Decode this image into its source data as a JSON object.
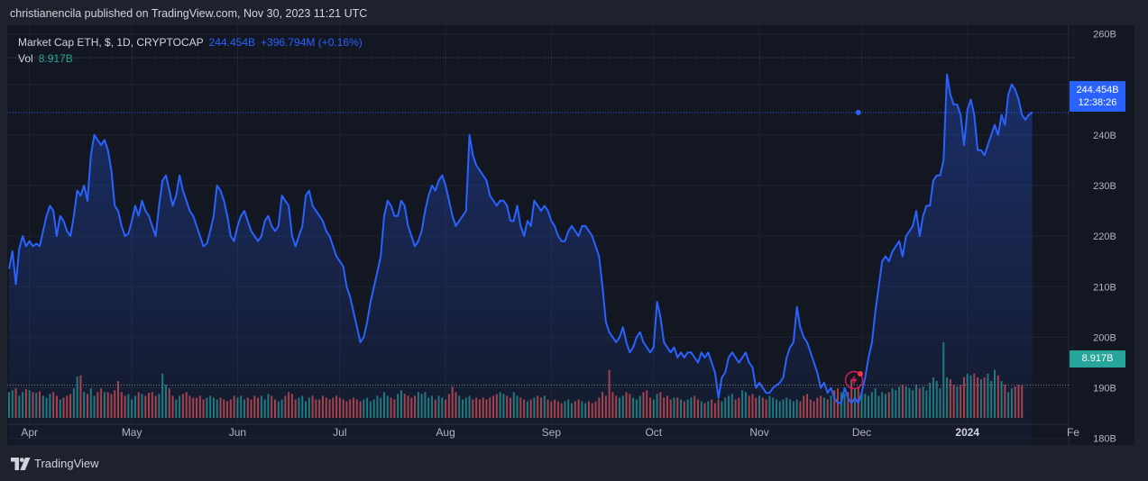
{
  "header": {
    "published_text": "christianencila published on TradingView.com, Nov 30, 2023 11:21 UTC"
  },
  "legend": {
    "title": "Market Cap ETH, $, 1D, CRYPTOCAP",
    "last_value": "244.454B",
    "change": "+396.794M (+0.16%)",
    "vol_label": "Vol",
    "vol_value": "8.917B"
  },
  "price_tag": {
    "value": "244.454B",
    "countdown": "12:38:26"
  },
  "vol_tag": {
    "value": "8.917B"
  },
  "footer": {
    "brand": "TradingView",
    "logo_icon": "tradingview-logo-icon"
  },
  "colors": {
    "line": "#2962ff",
    "vol_up": "#26a69a",
    "vol_down": "#ef5350",
    "background": "#131722",
    "page_background": "#1e222d"
  },
  "chart_data": {
    "type": "area",
    "x_ticks": [
      {
        "label": "Apr",
        "date": "2023-04-01"
      },
      {
        "label": "May",
        "date": "2023-05-01"
      },
      {
        "label": "Jun",
        "date": "2023-06-01"
      },
      {
        "label": "Jul",
        "date": "2023-07-01"
      },
      {
        "label": "Aug",
        "date": "2023-08-01"
      },
      {
        "label": "Sep",
        "date": "2023-09-01"
      },
      {
        "label": "Oct",
        "date": "2023-10-01"
      },
      {
        "label": "Nov",
        "date": "2023-11-01"
      },
      {
        "label": "Dec",
        "date": "2023-12-01"
      },
      {
        "label": "2024",
        "date": "2024-01-01"
      },
      {
        "label": "Fe",
        "date": "2024-02-01"
      }
    ],
    "x_range": [
      "2023-03-26",
      "2024-02-01"
    ],
    "y_ticks": [
      "260B",
      "250B",
      "240B",
      "230B",
      "220B",
      "210B",
      "200B",
      "190B",
      "180B"
    ],
    "y_tick_values": [
      260,
      250,
      240,
      230,
      220,
      210,
      200,
      190,
      180
    ],
    "y_unit": "B USD",
    "ylim": [
      178.7,
      261.7
    ],
    "series": [
      {
        "name": "Market Cap ETH",
        "start_date": "2023-03-26",
        "values": [
          213.5,
          217,
          210.5,
          217.5,
          220,
          218,
          219,
          218,
          218.5,
          218,
          221,
          224,
          226,
          225,
          220,
          224,
          223,
          221,
          220,
          224,
          229,
          228,
          230,
          227,
          236,
          240,
          239,
          238,
          239,
          237,
          233,
          226,
          225,
          222,
          220,
          220.5,
          223,
          226,
          224,
          227,
          225,
          224,
          222,
          220,
          226,
          231,
          232,
          229,
          226,
          228,
          232,
          229,
          227,
          225,
          224,
          222,
          220,
          218,
          218.5,
          221,
          224,
          230,
          229,
          227,
          224,
          220,
          219,
          222,
          224,
          225,
          223,
          221,
          220,
          219,
          220,
          223,
          224,
          222,
          221,
          222,
          228,
          227,
          226,
          220,
          218,
          220,
          222,
          228,
          229,
          226,
          225,
          224,
          223,
          221,
          220,
          218,
          216,
          215,
          214,
          210,
          208,
          205,
          202,
          199,
          200,
          203,
          207,
          210,
          213,
          216,
          224,
          227,
          226,
          224,
          224,
          227,
          226,
          222,
          220,
          218,
          219,
          221,
          225,
          228,
          230,
          229,
          231,
          232,
          230,
          227,
          224,
          222,
          223,
          224,
          225,
          240,
          236,
          234,
          233,
          232,
          231,
          228,
          227,
          226,
          227,
          227,
          226,
          223,
          223,
          226,
          222,
          220,
          223,
          222,
          227,
          226,
          225,
          226,
          225,
          223,
          222,
          220,
          219,
          219,
          221,
          222,
          221,
          220,
          222,
          222,
          221,
          220,
          218,
          216,
          210,
          203,
          201,
          200,
          199,
          200,
          202,
          199,
          197,
          198,
          200,
          201,
          199,
          198,
          197,
          198,
          207,
          204,
          199,
          198,
          197,
          198,
          196,
          197,
          196,
          197,
          197,
          196,
          195,
          197,
          196,
          197,
          195,
          193,
          188,
          192,
          193,
          196,
          197,
          196,
          195,
          196,
          197,
          195,
          194,
          190,
          191,
          190,
          189,
          189,
          190,
          190.5,
          191,
          192,
          196,
          198,
          199,
          206,
          202,
          200,
          199,
          197,
          195,
          193,
          190,
          191,
          189,
          190,
          188,
          187,
          187,
          190,
          188,
          187,
          188,
          187,
          189,
          192,
          196,
          199,
          205,
          210,
          215,
          216,
          215,
          217,
          218,
          219,
          216,
          220,
          221,
          222,
          225,
          220,
          224,
          226,
          226,
          231,
          232,
          232,
          235,
          252,
          248,
          246,
          246,
          244,
          238,
          245,
          247,
          244,
          237,
          237,
          236,
          238,
          240,
          242,
          240,
          244,
          242,
          248,
          250,
          249,
          247,
          244,
          243,
          244,
          244.5
        ]
      },
      {
        "name": "Vol",
        "start_date": "2023-03-26",
        "values": [
          7,
          7.5,
          8,
          6,
          7,
          7.8,
          7.5,
          7,
          6.8,
          7.2,
          6,
          5.5,
          6.5,
          7,
          6,
          5,
          5.5,
          6,
          6.5,
          8,
          11.2,
          11.5,
          7,
          6.5,
          8,
          6,
          7,
          8,
          7,
          7,
          6.5,
          7.5,
          10,
          7,
          6,
          6.5,
          5,
          6,
          7,
          6.5,
          6,
          6.8,
          7,
          6,
          6.5,
          12,
          9,
          8,
          6,
          5,
          6,
          6.5,
          7,
          6,
          5.5,
          5.5,
          6,
          5,
          5.5,
          6,
          5.5,
          5,
          5.5,
          5,
          4.5,
          5,
          6,
          5.5,
          6,
          5,
          5.5,
          5,
          6,
          5.5,
          6,
          5,
          6.5,
          6,
          5,
          4.5,
          5,
          6,
          7,
          6.5,
          5,
          5.5,
          6,
          4.5,
          5.5,
          6,
          5,
          5,
          6,
          5.5,
          5,
          5.5,
          6,
          5.5,
          5,
          4.5,
          5,
          5.5,
          5,
          4.5,
          5,
          5.5,
          4.5,
          5,
          6,
          5.5,
          7,
          6,
          5.5,
          5,
          6.5,
          7.5,
          6.5,
          6,
          5.5,
          6,
          7,
          6.5,
          7,
          5.5,
          6,
          5,
          6,
          5.5,
          5,
          6.5,
          8.5,
          7,
          6,
          5,
          5.5,
          6,
          5,
          5.5,
          5,
          5.5,
          5,
          5.5,
          6,
          6.5,
          7,
          6.5,
          6,
          5.5,
          7,
          6,
          5.5,
          5,
          4.5,
          5,
          5.5,
          6,
          5.5,
          6,
          5,
          4.5,
          5,
          4.5,
          4,
          4.5,
          5,
          4,
          4.5,
          5,
          4.5,
          4,
          4.5,
          4,
          4.5,
          5.5,
          7,
          6,
          13,
          7,
          6,
          5.5,
          6,
          7,
          6.5,
          5.5,
          5,
          6,
          7,
          7.5,
          5.5,
          5,
          6.5,
          7,
          5.5,
          6,
          5,
          5.5,
          5.5,
          5,
          4.5,
          5,
          5.5,
          6,
          5,
          4.5,
          4,
          4.5,
          5,
          4,
          5,
          4.5,
          5.5,
          6,
          6.5,
          5,
          5.5,
          7.5,
          7,
          6,
          6.5,
          5.5,
          6,
          5.5,
          5,
          6,
          5.5,
          5,
          4.5,
          5,
          5.5,
          5,
          4.5,
          5,
          4.5,
          6,
          6.5,
          5,
          4.5,
          5.5,
          6,
          5.5,
          5,
          6,
          7.5,
          8,
          7,
          6.5,
          7,
          10.5,
          8,
          8.5,
          7,
          6.5,
          6,
          7,
          8,
          6,
          7,
          6.5,
          7,
          8,
          7.5,
          8.5,
          9,
          8.5,
          8,
          7.5,
          9,
          8,
          8.5,
          7.5,
          9.5,
          11,
          10,
          8,
          20.5,
          11,
          10.5,
          9,
          8.5,
          9,
          11,
          12,
          11.5,
          12,
          11,
          10.5,
          11,
          12,
          10,
          13,
          11.5,
          10,
          9,
          7,
          8,
          8.5,
          9,
          8.917
        ]
      }
    ],
    "last": {
      "date": "2023-11-30",
      "value": 244.454,
      "volume": 8.917
    },
    "grid": true,
    "legend_position": "top-left"
  }
}
